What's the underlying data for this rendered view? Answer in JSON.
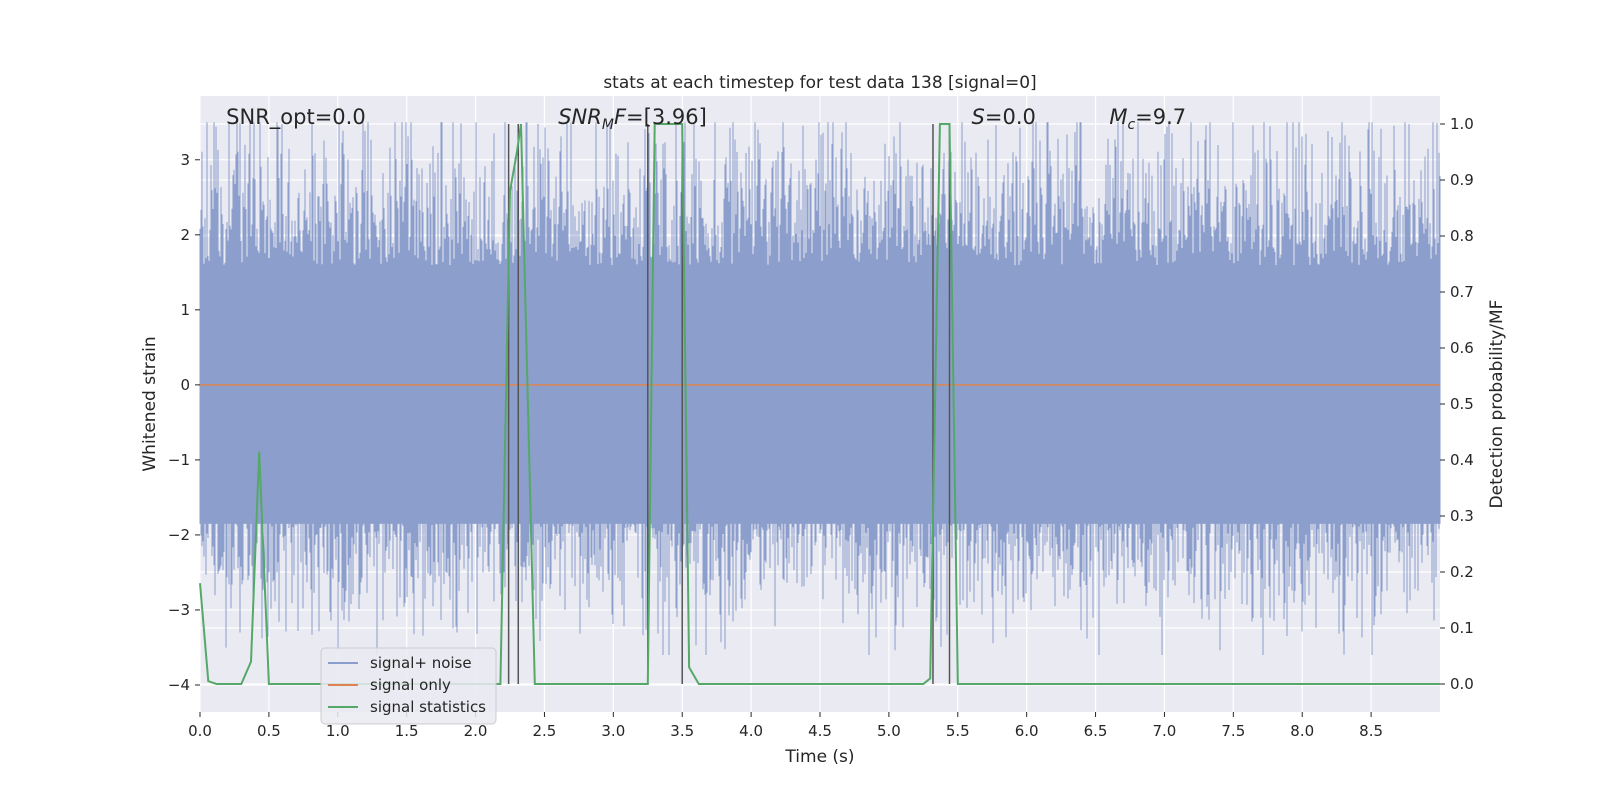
{
  "chart_data": {
    "type": "line",
    "title": "stats at each timestep for test data 138 [signal=0]",
    "xlabel": "Time (s)",
    "ylabel": "Whitened strain",
    "y2label": "Detection probability/MF",
    "xlim": [
      0.0,
      9.0
    ],
    "ylim": [
      -4.36,
      3.85
    ],
    "y2lim": [
      -0.05,
      1.05
    ],
    "xticks": [
      "0.0",
      "0.5",
      "1.0",
      "1.5",
      "2.0",
      "2.5",
      "3.0",
      "3.5",
      "4.0",
      "4.5",
      "5.0",
      "5.5",
      "6.0",
      "6.5",
      "7.0",
      "7.5",
      "8.0",
      "8.5"
    ],
    "yticks": [
      "−4",
      "−3",
      "−2",
      "−1",
      "0",
      "1",
      "2",
      "3"
    ],
    "y2ticks": [
      "0.0",
      "0.1",
      "0.2",
      "0.3",
      "0.4",
      "0.5",
      "0.6",
      "0.7",
      "0.8",
      "0.9",
      "1.0"
    ],
    "grid": true,
    "legend_position": "lower-left",
    "colors": {
      "noise": "#8c9ecb",
      "signal": "#dd8452",
      "stats": "#55a868",
      "vlines": "#555555",
      "plot_bg": "#eaeaf2",
      "grid": "#ffffff"
    },
    "series": [
      {
        "name": "signal+ noise",
        "noise_band": [
          -1.85,
          1.3
        ],
        "typical_extent": [
          -2.6,
          2.9
        ]
      },
      {
        "name": "signal only",
        "x": [
          0.0,
          9.0
        ],
        "y": [
          0.0,
          0.0
        ]
      },
      {
        "name": "signal statistics",
        "axis": "right",
        "x": [
          0.0,
          0.06,
          0.12,
          0.2,
          0.3,
          0.37,
          0.43,
          0.5,
          1.0,
          1.5,
          2.0,
          2.18,
          2.25,
          2.3,
          2.33,
          2.43,
          3.0,
          3.25,
          3.3,
          3.36,
          3.5,
          3.55,
          3.62,
          4.0,
          4.5,
          5.0,
          5.25,
          5.3,
          5.37,
          5.44,
          5.5,
          6.0,
          7.0,
          8.0,
          9.0
        ],
        "y": [
          0.18,
          0.005,
          0.0,
          0.0,
          0.0,
          0.04,
          0.415,
          0.0,
          0.0,
          0.0,
          0.0,
          0.0,
          0.88,
          0.95,
          1.0,
          0.0,
          0.0,
          0.0,
          1.0,
          1.0,
          1.0,
          0.03,
          0.0,
          0.0,
          0.0,
          0.0,
          0.0,
          0.01,
          1.0,
          1.0,
          0.0,
          0.0,
          0.0,
          0.0,
          0.0
        ]
      }
    ],
    "vlines": [
      2.24,
      2.31,
      3.25,
      3.5,
      5.32,
      5.44
    ],
    "annotations": [
      {
        "text": "SNR_opt=0.0",
        "x": 0.19
      },
      {
        "text": "SNR",
        "sub": "M",
        "rest": "F=[3.96]",
        "x": 2.6,
        "italic": true
      },
      {
        "text": "S",
        "rest": "=0.0",
        "x": 5.6,
        "italic": true
      },
      {
        "text": "M",
        "sub": "c",
        "rest": "=9.7",
        "x": 6.6,
        "italic": true
      }
    ]
  }
}
